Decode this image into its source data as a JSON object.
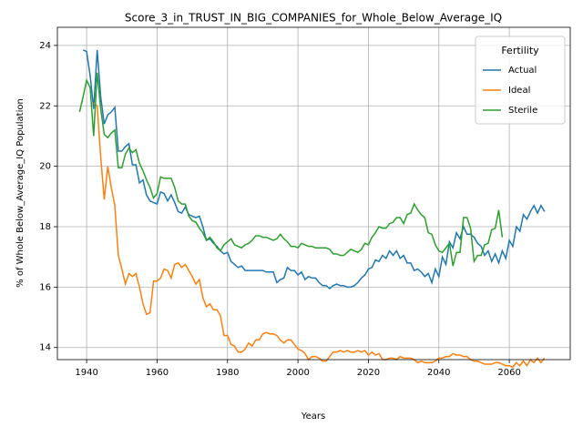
{
  "chart_data": {
    "type": "line",
    "title": "Score_3_in_TRUST_IN_BIG_COMPANIES_for_Whole_Below_Average_IQ",
    "xlabel": "Years",
    "ylabel": "% of Whole Below_Average_IQ Population",
    "legend_title": "Fertility",
    "legend": "upper right",
    "grid": true,
    "xlim": [
      1931.7,
      2077.3
    ],
    "ylim": [
      13.6,
      24.6
    ],
    "xticks": [
      1940,
      1960,
      1980,
      2000,
      2020,
      2040,
      2060
    ],
    "yticks": [
      14,
      16,
      18,
      20,
      22,
      24
    ],
    "x": [
      1938,
      1939,
      1940,
      1941,
      1942,
      1943,
      1944,
      1945,
      1946,
      1947,
      1948,
      1949,
      1950,
      1951,
      1952,
      1953,
      1954,
      1955,
      1956,
      1957,
      1958,
      1959,
      1960,
      1961,
      1962,
      1963,
      1964,
      1965,
      1966,
      1967,
      1968,
      1969,
      1970,
      1971,
      1972,
      1973,
      1974,
      1975,
      1976,
      1977,
      1978,
      1979,
      1980,
      1981,
      1982,
      1983,
      1984,
      1985,
      1986,
      1987,
      1988,
      1989,
      1990,
      1991,
      1992,
      1993,
      1994,
      1995,
      1996,
      1997,
      1998,
      1999,
      2000,
      2001,
      2002,
      2003,
      2004,
      2005,
      2006,
      2007,
      2008,
      2009,
      2010,
      2011,
      2012,
      2013,
      2014,
      2015,
      2016,
      2017,
      2018,
      2019,
      2020,
      2021,
      2022,
      2023,
      2024,
      2025,
      2026,
      2027,
      2028,
      2029,
      2030,
      2031,
      2032,
      2033,
      2034,
      2035,
      2036,
      2037,
      2038,
      2039,
      2040,
      2041,
      2042,
      2043,
      2044,
      2045,
      2046,
      2047,
      2048,
      2049,
      2050,
      2051,
      2052,
      2053,
      2054,
      2055,
      2056,
      2057,
      2058,
      2059,
      2060,
      2061,
      2062,
      2063,
      2064,
      2065,
      2066,
      2067,
      2068,
      2069,
      2070
    ],
    "series": [
      {
        "name": "Actual",
        "color": "#1f77b4",
        "values": [
          null,
          23.85,
          23.8,
          23.0,
          21.9,
          23.85,
          22.3,
          21.4,
          21.7,
          21.8,
          21.95,
          20.5,
          20.5,
          20.65,
          20.75,
          20.05,
          20.05,
          19.45,
          19.55,
          19.05,
          18.85,
          18.8,
          18.75,
          19.15,
          19.1,
          18.85,
          19.05,
          18.8,
          18.5,
          18.45,
          18.65,
          18.4,
          18.35,
          18.3,
          18.35,
          18.0,
          17.55,
          17.6,
          17.45,
          17.35,
          17.2,
          17.1,
          17.15,
          16.85,
          16.75,
          16.65,
          16.7,
          16.55,
          16.55,
          16.55,
          16.55,
          16.55,
          16.55,
          16.5,
          16.5,
          16.5,
          16.15,
          16.25,
          16.3,
          16.65,
          16.55,
          16.55,
          16.4,
          16.5,
          16.25,
          16.35,
          16.3,
          16.3,
          16.15,
          16.05,
          16.05,
          15.95,
          16.05,
          16.1,
          16.05,
          16.05,
          16.0,
          16.0,
          16.05,
          16.15,
          16.3,
          16.4,
          16.6,
          16.65,
          16.9,
          16.85,
          17.05,
          16.95,
          17.2,
          17.05,
          17.2,
          16.95,
          17.05,
          16.8,
          16.8,
          16.55,
          16.6,
          16.5,
          16.35,
          16.45,
          16.15,
          16.6,
          16.35,
          17.0,
          16.75,
          17.5,
          17.3,
          17.8,
          17.6,
          18.0,
          17.75,
          17.75,
          17.65,
          17.45,
          17.35,
          17.05,
          17.2,
          16.85,
          17.1,
          16.8,
          17.2,
          16.95,
          17.55,
          17.35,
          18.0,
          17.85,
          18.4,
          18.25,
          18.5,
          18.7,
          18.45,
          18.7,
          18.5
        ]
      },
      {
        "name": "Ideal",
        "color": "#ff7f0e",
        "values": [
          null,
          null,
          null,
          null,
          22.1,
          22.0,
          20.3,
          18.9,
          20.0,
          19.3,
          18.7,
          17.05,
          16.6,
          16.1,
          16.45,
          16.35,
          16.45,
          16.0,
          15.45,
          15.1,
          15.15,
          16.2,
          16.2,
          16.3,
          16.6,
          16.55,
          16.3,
          16.75,
          16.8,
          16.65,
          16.75,
          16.55,
          16.35,
          16.1,
          16.25,
          15.65,
          15.35,
          15.45,
          15.25,
          15.25,
          15.05,
          14.4,
          14.4,
          14.1,
          14.05,
          13.85,
          13.85,
          13.95,
          14.15,
          14.05,
          14.25,
          14.25,
          14.45,
          14.5,
          14.45,
          14.45,
          14.4,
          14.25,
          14.15,
          14.25,
          14.25,
          14.1,
          13.95,
          13.9,
          13.8,
          13.6,
          13.7,
          13.7,
          13.65,
          13.55,
          13.55,
          13.7,
          13.85,
          13.85,
          13.9,
          13.85,
          13.9,
          13.85,
          13.85,
          13.9,
          13.85,
          13.9,
          13.75,
          13.85,
          13.75,
          13.8,
          13.6,
          13.6,
          13.65,
          13.65,
          13.6,
          13.7,
          13.65,
          13.65,
          13.65,
          13.6,
          13.5,
          13.55,
          13.5,
          13.5,
          13.5,
          13.55,
          13.65,
          13.65,
          13.7,
          13.7,
          13.8,
          13.75,
          13.75,
          13.7,
          13.7,
          13.6,
          13.55,
          13.55,
          13.5,
          13.45,
          13.45,
          13.45,
          13.5,
          13.5,
          13.45,
          13.4,
          13.4,
          13.35,
          13.5,
          13.4,
          13.55,
          13.4,
          13.6,
          13.5,
          13.65,
          13.5,
          13.65
        ]
      },
      {
        "name": "Sterile",
        "color": "#2ca02c",
        "values": [
          21.8,
          22.3,
          22.85,
          22.6,
          21.0,
          23.1,
          21.9,
          21.05,
          20.95,
          21.1,
          21.2,
          19.95,
          19.95,
          20.4,
          20.6,
          20.45,
          20.55,
          20.1,
          19.85,
          19.55,
          19.3,
          18.95,
          19.1,
          19.65,
          19.6,
          19.6,
          19.6,
          19.3,
          18.85,
          18.75,
          18.75,
          18.35,
          18.2,
          18.15,
          17.95,
          17.8,
          17.55,
          17.65,
          17.5,
          17.3,
          17.2,
          17.4,
          17.5,
          17.6,
          17.4,
          17.35,
          17.3,
          17.4,
          17.45,
          17.55,
          17.7,
          17.7,
          17.65,
          17.65,
          17.6,
          17.55,
          17.6,
          17.75,
          17.6,
          17.5,
          17.35,
          17.35,
          17.3,
          17.45,
          17.4,
          17.35,
          17.35,
          17.3,
          17.3,
          17.3,
          17.3,
          17.25,
          17.1,
          17.1,
          17.05,
          17.05,
          17.15,
          17.25,
          17.2,
          17.15,
          17.25,
          17.45,
          17.4,
          17.65,
          17.8,
          18.0,
          17.95,
          17.95,
          18.1,
          18.15,
          18.3,
          18.3,
          18.1,
          18.4,
          18.45,
          18.75,
          18.55,
          18.4,
          18.3,
          17.8,
          17.75,
          17.4,
          17.2,
          17.15,
          17.3,
          17.45,
          16.7,
          17.15,
          17.15,
          18.3,
          18.3,
          17.95,
          16.85,
          17.05,
          17.05,
          17.4,
          17.45,
          17.9,
          17.95,
          18.55,
          17.65,
          null,
          null,
          null,
          null,
          null,
          null,
          null,
          null,
          null,
          null,
          null,
          null
        ]
      }
    ]
  }
}
